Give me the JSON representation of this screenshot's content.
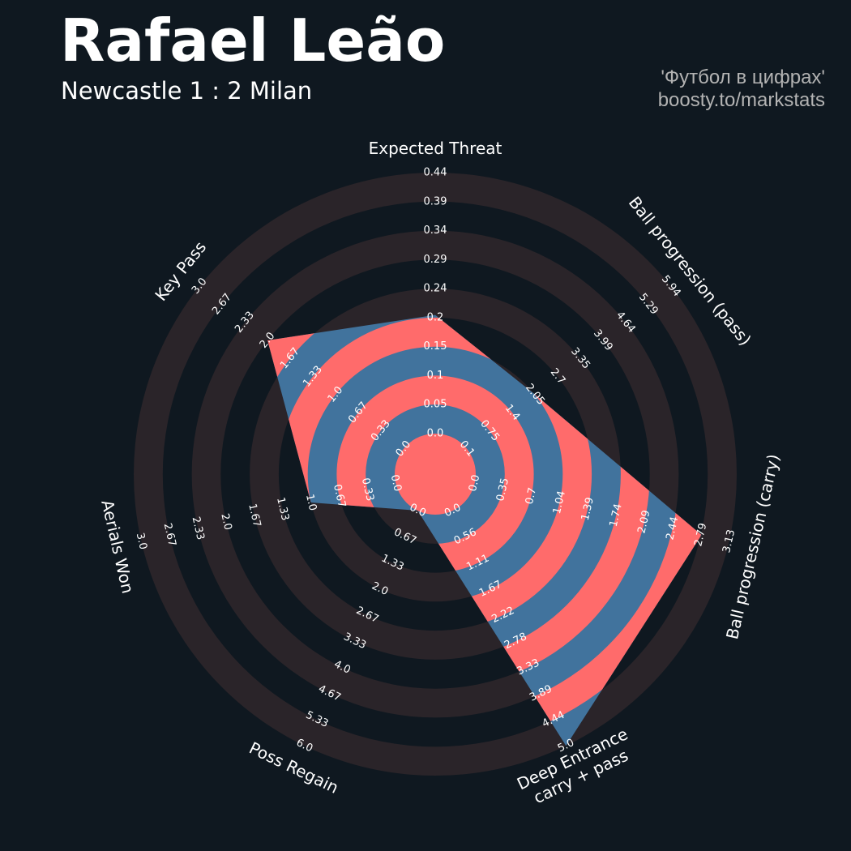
{
  "header": {
    "title": "Rafael Leão",
    "subtitle": "Newcastle 1 : 2 Milan",
    "credit_line1": "'Футбол в цифрах'",
    "credit_line2": "boosty.to/markstats"
  },
  "colors": {
    "background": "#0f1820",
    "outer_rings": "#2a2429",
    "inner_rings": "#ff6b6b",
    "player_polygon": "#41739d",
    "text": "#ffffff",
    "credit": "#b3b3b3"
  },
  "chart_data": {
    "type": "radar",
    "title": "Rafael Leão",
    "subtitle": "Newcastle 1 : 2 Milan",
    "axes": [
      {
        "name": "Expected Threat",
        "lines": [
          "Expected Threat"
        ],
        "ticks": [
          "0.0",
          "0.05",
          "0.1",
          "0.15",
          "0.2",
          "0.24",
          "0.29",
          "0.34",
          "0.39",
          "0.44"
        ],
        "min": 0.0,
        "max": 0.44,
        "value": 0.2
      },
      {
        "name": "Ball progression (pass)",
        "lines": [
          "Ball progression (pass)"
        ],
        "ticks": [
          "0.1",
          "0.75",
          "1.4",
          "2.05",
          "2.7",
          "3.35",
          "3.99",
          "4.64",
          "5.29",
          "5.94"
        ],
        "min": 0.1,
        "max": 5.94,
        "value": 2.05
      },
      {
        "name": "Ball progression (carry)",
        "lines": [
          "Ball progression (carry)"
        ],
        "ticks": [
          "0.0",
          "0.35",
          "0.7",
          "1.04",
          "1.39",
          "1.74",
          "2.09",
          "2.44",
          "2.79",
          "3.13"
        ],
        "min": 0.0,
        "max": 3.13,
        "value": 2.79
      },
      {
        "name": "Deep Entrance carry + pass",
        "lines": [
          "Deep Entrance",
          "carry + pass"
        ],
        "ticks": [
          "0.0",
          "0.56",
          "1.11",
          "1.67",
          "2.22",
          "2.78",
          "3.33",
          "3.89",
          "4.44",
          "5.0"
        ],
        "min": 0.0,
        "max": 5.0,
        "value": 5.0
      },
      {
        "name": "Poss Regain",
        "lines": [
          "Poss Regain"
        ],
        "ticks": [
          "0.0",
          "0.67",
          "1.33",
          "2.0",
          "2.67",
          "3.33",
          "4.0",
          "4.67",
          "5.33",
          "6.0"
        ],
        "min": 0.0,
        "max": 6.0,
        "value": 0.0
      },
      {
        "name": "Aerials Won",
        "lines": [
          "Aerials Won"
        ],
        "ticks": [
          "0.0",
          "0.33",
          "0.67",
          "1.0",
          "1.33",
          "1.67",
          "2.0",
          "2.33",
          "2.67",
          "3.0"
        ],
        "min": 0.0,
        "max": 3.0,
        "value": 1.0
      },
      {
        "name": "Key Pass",
        "lines": [
          "Key Pass"
        ],
        "ticks": [
          "0.0",
          "0.33",
          "0.67",
          "1.0",
          "1.33",
          "1.67",
          "2.0",
          "2.33",
          "2.67",
          "3.0"
        ],
        "min": 0.0,
        "max": 3.0,
        "value": 2.0
      }
    ]
  }
}
